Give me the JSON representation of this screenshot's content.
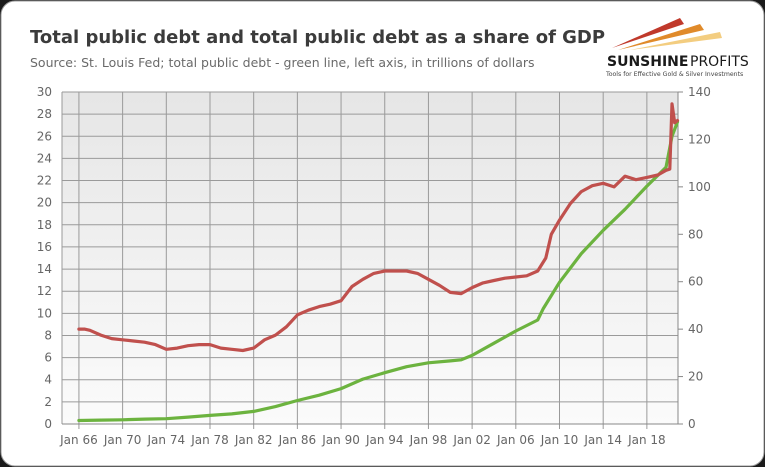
{
  "chart_data": {
    "type": "line",
    "title": "Total public debt and total public debt as a share of GDP",
    "subtitle": "Source: St. Louis Fed; total public debt - green line, left axis, in trillions of dollars",
    "xlabel": "",
    "ylabel_left": "",
    "ylabel_right": "",
    "xlim": [
      1964.45,
      2020.85
    ],
    "ylim_left": [
      0,
      30
    ],
    "ylim_right": [
      0,
      140
    ],
    "grid": true,
    "legend": "none",
    "x_ticks": [
      1966,
      1970,
      1974,
      1978,
      1982,
      1986,
      1990,
      1994,
      1998,
      2002,
      2006,
      2010,
      2014,
      2018
    ],
    "x_tick_labels": [
      "Jan 66",
      "Jan 70",
      "Jan 74",
      "Jan 78",
      "Jan 82",
      "Jan 86",
      "Jan 90",
      "Jan 94",
      "Jan 98",
      "Jan 02",
      "Jan 06",
      "Jan 10",
      "Jan 14",
      "Jan 18"
    ],
    "y_left_ticks": [
      "0",
      "2",
      "4",
      "6",
      "8",
      "10",
      "12",
      "14",
      "16",
      "18",
      "20",
      "22",
      "24",
      "26",
      "28",
      "30"
    ],
    "y_right_ticks": [
      "0",
      "20",
      "40",
      "60",
      "80",
      "100",
      "120",
      "140"
    ],
    "series": [
      {
        "name": "Total public debt (trillions of dollars)",
        "axis": "left",
        "color": "#6cb33f",
        "x": [
          1966,
          1968,
          1970,
          1972,
          1974,
          1976,
          1978,
          1980,
          1982,
          1984,
          1986,
          1988,
          1990,
          1992,
          1994,
          1996,
          1998,
          2000,
          2001,
          2002,
          2004,
          2006,
          2008,
          2008.5,
          2010,
          2012,
          2014,
          2016,
          2018,
          2019.75,
          2020.3,
          2020.8
        ],
        "y": [
          0.32,
          0.35,
          0.38,
          0.44,
          0.48,
          0.62,
          0.78,
          0.91,
          1.14,
          1.57,
          2.12,
          2.6,
          3.2,
          4.06,
          4.64,
          5.18,
          5.53,
          5.7,
          5.8,
          6.2,
          7.3,
          8.4,
          9.4,
          10.4,
          12.8,
          15.4,
          17.5,
          19.4,
          21.5,
          23.2,
          26.0,
          27.3
        ]
      },
      {
        "name": "Total public debt as % of GDP",
        "axis": "right",
        "color": "#c0504d",
        "x": [
          1966,
          1966.5,
          1967,
          1968,
          1969,
          1970,
          1971,
          1972,
          1973,
          1974,
          1975,
          1976,
          1977,
          1978,
          1979,
          1980,
          1981,
          1982,
          1983,
          1984,
          1985,
          1986,
          1987,
          1988,
          1989,
          1990,
          1991,
          1992,
          1993,
          1994,
          1995,
          1996,
          1997,
          1998,
          1999,
          2000,
          2001,
          2002,
          2003,
          2004,
          2005,
          2006,
          2007,
          2008,
          2008.75,
          2009.25,
          2010,
          2011,
          2012,
          2013,
          2014,
          2015,
          2016,
          2017,
          2018,
          2019,
          2019.75,
          2020.1,
          2020.3,
          2020.55,
          2020.8
        ],
        "y": [
          40,
          40,
          39.5,
          37.5,
          36,
          35.5,
          35,
          34.5,
          33.5,
          31.5,
          32,
          33,
          33.5,
          33.5,
          32,
          31.5,
          31,
          32,
          35.5,
          37.5,
          41,
          46,
          48,
          49.5,
          50.5,
          52,
          58,
          61,
          63.5,
          64.5,
          64.5,
          64.5,
          63.5,
          61,
          58.5,
          55.5,
          55,
          57.5,
          59.5,
          60.5,
          61.5,
          62,
          62.5,
          64.5,
          70,
          80,
          86,
          93,
          98,
          100.5,
          101.5,
          100,
          104.5,
          103,
          104,
          105,
          107,
          107.5,
          135,
          127,
          128
        ]
      }
    ]
  },
  "logo": {
    "name_bold": "SUNSHINE",
    "name_light": "PROFITS",
    "tagline": "Tools for Effective Gold & Silver Investments"
  }
}
